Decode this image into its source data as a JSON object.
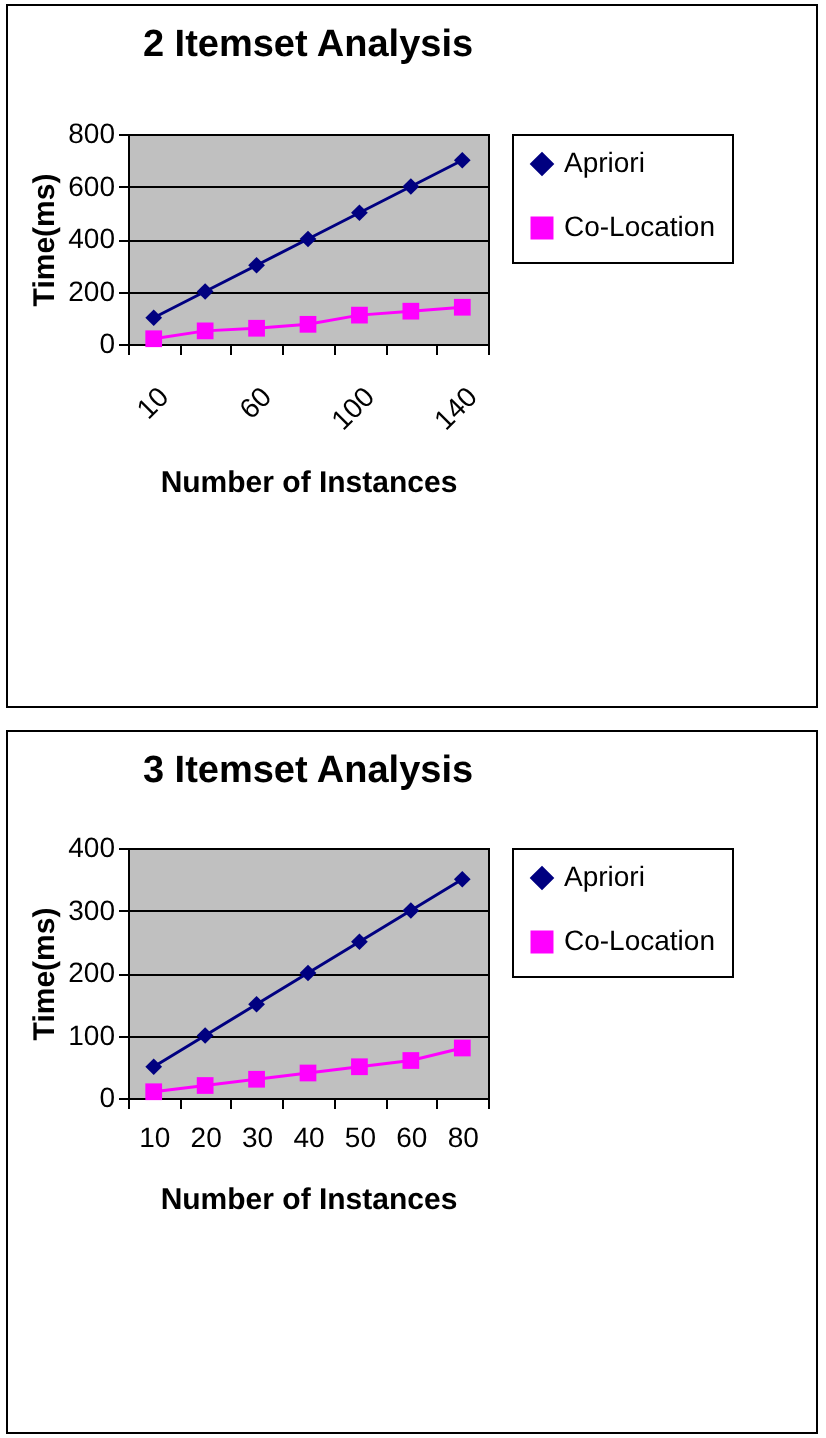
{
  "chart_data": [
    {
      "type": "line",
      "title": "2 Itemset Analysis",
      "xlabel": "Number of Instances",
      "ylabel": "Time(ms)",
      "categories": [
        "10",
        null,
        "60",
        null,
        "100",
        null,
        "140"
      ],
      "ylim": [
        0,
        800
      ],
      "yticks": [
        0,
        200,
        400,
        600,
        800
      ],
      "grid": "y",
      "legend": "right",
      "series": [
        {
          "name": "Apriori",
          "color": "#000080",
          "marker": "diamond",
          "values": [
            100,
            200,
            300,
            400,
            500,
            600,
            700
          ]
        },
        {
          "name": "Co-Location",
          "color": "#ff00ff",
          "marker": "square",
          "values": [
            20,
            50,
            60,
            75,
            110,
            125,
            140
          ]
        }
      ]
    },
    {
      "type": "line",
      "title": "3 Itemset Analysis",
      "xlabel": "Number of Instances",
      "ylabel": "Time(ms)",
      "categories": [
        "10",
        "20",
        "30",
        "40",
        "50",
        "60",
        "80"
      ],
      "ylim": [
        0,
        400
      ],
      "yticks": [
        0,
        100,
        200,
        300,
        400
      ],
      "grid": "y",
      "legend": "right",
      "series": [
        {
          "name": "Apriori",
          "color": "#000080",
          "marker": "diamond",
          "values": [
            50,
            100,
            150,
            200,
            250,
            300,
            350
          ]
        },
        {
          "name": "Co-Location",
          "color": "#ff00ff",
          "marker": "square",
          "values": [
            10,
            20,
            30,
            40,
            50,
            60,
            80
          ]
        }
      ]
    }
  ]
}
